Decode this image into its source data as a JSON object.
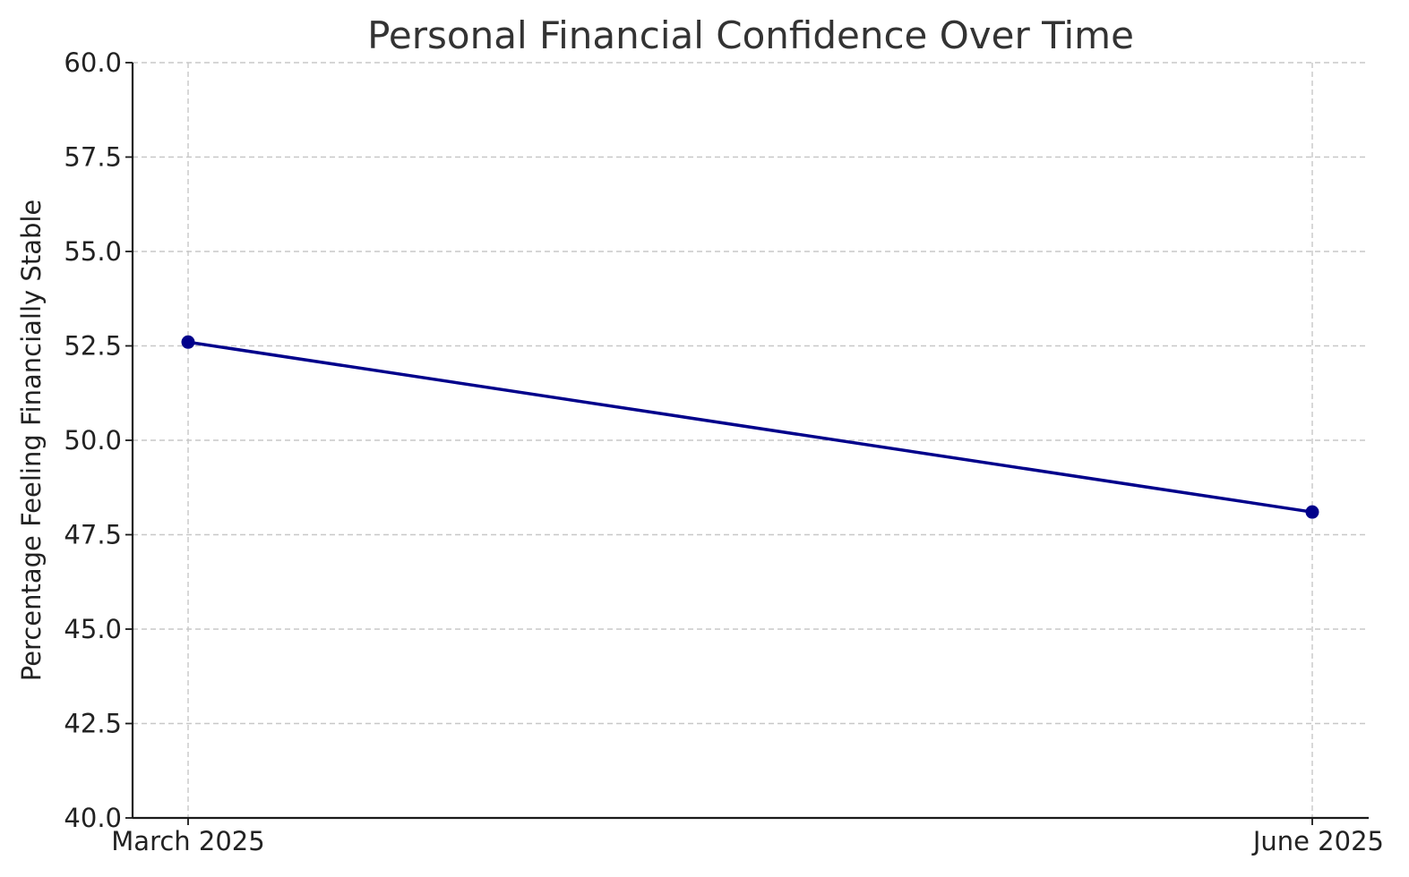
{
  "chart_data": {
    "type": "line",
    "title": "Personal Financial Confidence Over Time",
    "xlabel": "",
    "ylabel": "Percentage Feeling Financially Stable",
    "categories": [
      "March 2025",
      "June 2025"
    ],
    "series": [
      {
        "values": [
          52.6,
          48.1
        ],
        "color": "#00008b"
      }
    ],
    "ylim": [
      40.0,
      60.0
    ],
    "yticks": [
      "40.0",
      "42.5",
      "45.0",
      "47.5",
      "50.0",
      "52.5",
      "55.0",
      "57.5",
      "60.0"
    ],
    "grid": true,
    "legend": "none"
  }
}
